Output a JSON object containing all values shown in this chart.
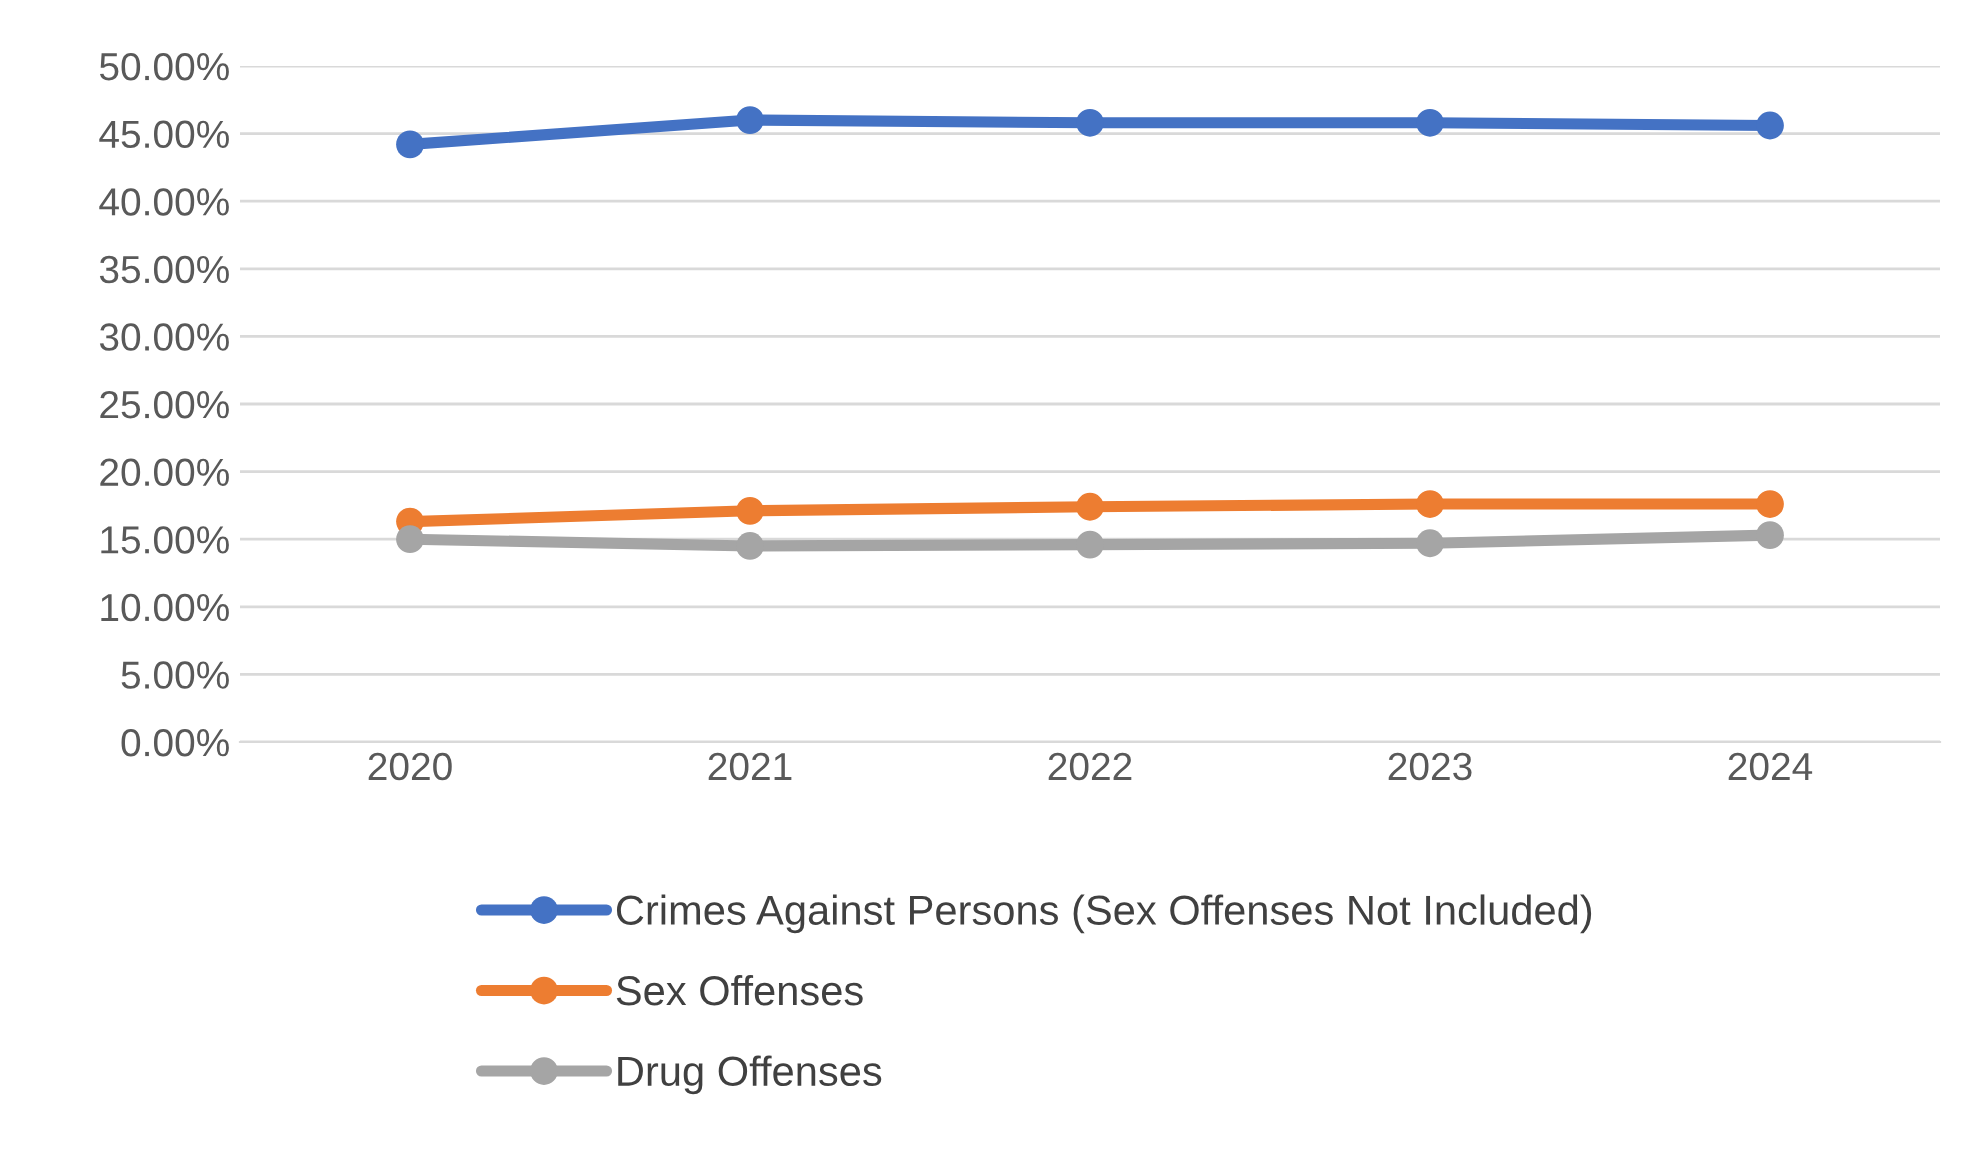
{
  "chart_data": {
    "type": "line",
    "categories": [
      "2020",
      "2021",
      "2022",
      "2023",
      "2024"
    ],
    "series": [
      {
        "name": "Crimes Against Persons (Sex Offenses Not Included)",
        "color": "#4472c4",
        "values": [
          44.2,
          46.0,
          45.8,
          45.8,
          45.6
        ]
      },
      {
        "name": "Sex Offenses",
        "color": "#ed7d31",
        "values": [
          16.3,
          17.1,
          17.4,
          17.6,
          17.6
        ]
      },
      {
        "name": "Drug Offenses",
        "color": "#a5a5a5",
        "values": [
          15.0,
          14.5,
          14.6,
          14.7,
          15.3
        ]
      }
    ],
    "ylim": [
      0,
      50
    ],
    "yticks": [
      {
        "value": 0,
        "label": "0.00%"
      },
      {
        "value": 5,
        "label": "5.00%"
      },
      {
        "value": 10,
        "label": "10.00%"
      },
      {
        "value": 15,
        "label": "15.00%"
      },
      {
        "value": 20,
        "label": "20.00%"
      },
      {
        "value": 25,
        "label": "25.00%"
      },
      {
        "value": 30,
        "label": "30.00%"
      },
      {
        "value": 35,
        "label": "35.00%"
      },
      {
        "value": 40,
        "label": "40.00%"
      },
      {
        "value": 45,
        "label": "45.00%"
      },
      {
        "value": 50,
        "label": "50.00%"
      }
    ],
    "grid": "y",
    "legend": "bottom",
    "marker": "circle",
    "line_style": "solid"
  }
}
